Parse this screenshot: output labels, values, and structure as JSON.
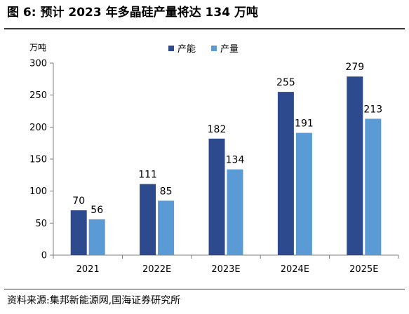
{
  "header": {
    "title": "图 6:  预计 2023 年多晶硅产量将达 134 万吨"
  },
  "footer": {
    "source": "资料来源:集邦新能源网,国海证券研究所"
  },
  "colors": {
    "capacity": "#2e4a8e",
    "output": "#5b9bd5",
    "axis": "#7f7f7f"
  },
  "chart_data": {
    "type": "bar",
    "unit_label": "万吨",
    "categories": [
      "2021",
      "2022E",
      "2023E",
      "2024E",
      "2025E"
    ],
    "series": [
      {
        "name": "产能",
        "values": [
          70,
          111,
          182,
          255,
          279
        ]
      },
      {
        "name": "产量",
        "values": [
          56,
          85,
          134,
          191,
          213
        ]
      }
    ],
    "ylim": [
      0,
      300
    ],
    "yticks": [
      0,
      50,
      100,
      150,
      200,
      250,
      300
    ],
    "grid": false,
    "legend": "top-center"
  }
}
